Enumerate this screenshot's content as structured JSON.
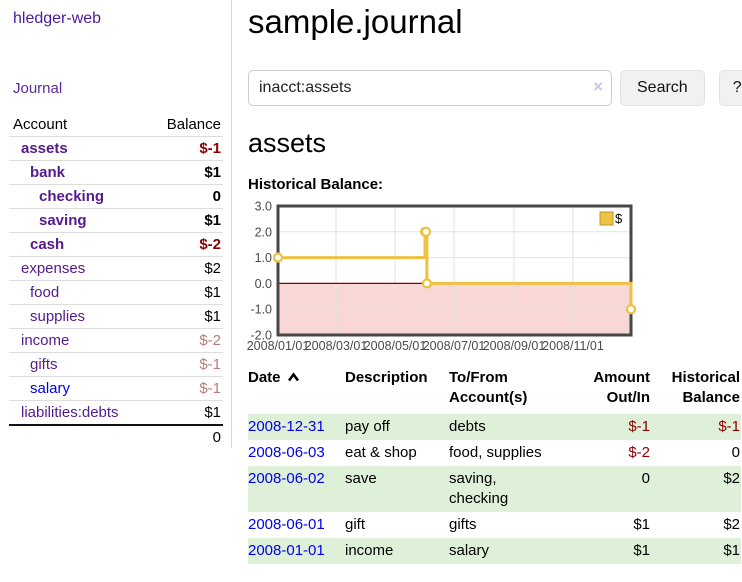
{
  "app": {
    "title": "hledger-web"
  },
  "sidebar": {
    "journal_link": "Journal",
    "accounts": {
      "header": {
        "account": "Account",
        "balance": "Balance"
      },
      "rows": [
        {
          "name": "assets",
          "balance": "$-1"
        },
        {
          "name": "bank",
          "balance": "$1"
        },
        {
          "name": "checking",
          "balance": "0"
        },
        {
          "name": "saving",
          "balance": "$1"
        },
        {
          "name": "cash",
          "balance": "$-2"
        },
        {
          "name": "expenses",
          "balance": "$2"
        },
        {
          "name": "food",
          "balance": "$1"
        },
        {
          "name": "supplies",
          "balance": "$1"
        },
        {
          "name": "income",
          "balance": "$-2"
        },
        {
          "name": "gifts",
          "balance": "$-1"
        },
        {
          "name": "salary",
          "balance": "$-1"
        },
        {
          "name": "liabilities:debts",
          "balance": "$1"
        }
      ],
      "total": "0"
    }
  },
  "main": {
    "title": "sample.journal",
    "search": {
      "query": "inacct:assets",
      "clear_icon": "×",
      "button": "Search",
      "help_button": "?"
    },
    "account_heading": "assets",
    "chart_title": "Historical Balance:"
  },
  "chart_data": {
    "type": "line",
    "step": true,
    "title": "Historical Balance",
    "series": [
      {
        "name": "$",
        "points": [
          [
            "2008-01-01",
            1
          ],
          [
            "2008-06-01",
            2
          ],
          [
            "2008-06-02",
            2
          ],
          [
            "2008-06-03",
            0
          ],
          [
            "2008-12-31",
            -1
          ]
        ]
      }
    ],
    "xlim": [
      "2008-01-01",
      "2008-12-31"
    ],
    "ylim": [
      -2,
      3
    ],
    "x_tick_dates": [
      "2008-01-01",
      "2008-03-01",
      "2008-05-01",
      "2008-07-01",
      "2008-09-01",
      "2008-11-01"
    ],
    "x_tick_labels": [
      "2008/01/01",
      "2008/03/01",
      "2008/05/01",
      "2008/07/01",
      "2008/09/01",
      "2008/11/01"
    ],
    "y_ticks": [
      3.0,
      2.0,
      1.0,
      0.0,
      -1.0,
      -2.0
    ],
    "legend": "$",
    "legend_position": "top-right",
    "grid": true,
    "line_color": "#edc240",
    "zero_line_color": "#8b0000",
    "negative_region_color": "#f9d7d7"
  },
  "register": {
    "headers": {
      "date": "Date",
      "description": "Description",
      "account_line1": "To/From",
      "account_line2": "Account(s)",
      "amount_line1": "Amount",
      "amount_line2": "Out/In",
      "balance_line1": "Historical",
      "balance_line2": "Balance"
    },
    "rows": [
      {
        "date": "2008-12-31",
        "description": "pay off",
        "accounts": "debts",
        "amount": "$-1",
        "balance": "$-1"
      },
      {
        "date": "2008-06-03",
        "description": "eat & shop",
        "accounts": "food, supplies",
        "amount": "$-2",
        "balance": "0"
      },
      {
        "date": "2008-06-02",
        "description": "save",
        "accounts": "saving, checking",
        "amount": "0",
        "balance": "$2"
      },
      {
        "date": "2008-06-01",
        "description": "gift",
        "accounts": "gifts",
        "amount": "$1",
        "balance": "$2"
      },
      {
        "date": "2008-01-01",
        "description": "income",
        "accounts": "salary",
        "amount": "$1",
        "balance": "$1"
      }
    ]
  },
  "colors": {
    "link_purple": "#551a8b",
    "link_blue": "#0000ee",
    "negative_dark": "#8b0000",
    "negative_muted": "#bd7b7b",
    "row_green": "#dff0d8",
    "chart_line": "#edc240"
  }
}
